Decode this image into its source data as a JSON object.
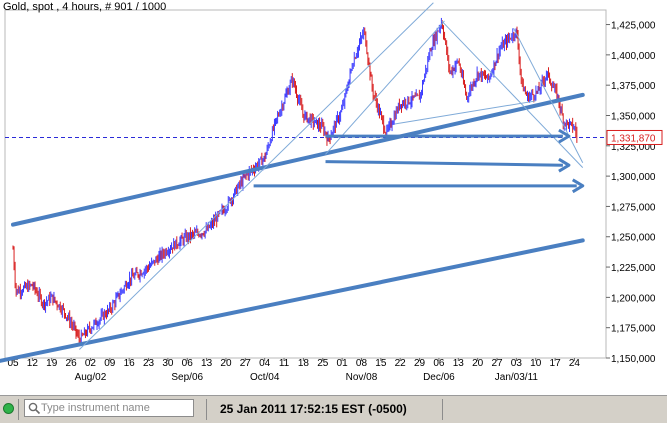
{
  "header": {
    "title": "Gold, spot , 4 hours, # 901 / 1000"
  },
  "status_bar": {
    "instrument_placeholder": "Type instrument name",
    "datetime": "25 Jan 2011 17:52:15  EST (-0500)"
  },
  "colors": {
    "bull": "#3a3aff",
    "bear": "#d81e1e",
    "trendline": "#4a7fc1",
    "thin_trendline": "#7faad8",
    "price_tag": "#d81e1e"
  },
  "chart_data": {
    "type": "candlestick",
    "title": "Gold, spot , 4 hours, # 901 / 1000",
    "ylim": [
      1150,
      1437
    ],
    "y_ticks": [
      1150,
      1175,
      1200,
      1225,
      1250,
      1275,
      1300,
      1325,
      1350,
      1375,
      1400,
      1425
    ],
    "y_tick_labels": [
      "1,150,000",
      "1,175,000",
      "1,200,000",
      "1,225,000",
      "1,250,000",
      "1,275,000",
      "1,300,000",
      "1,325,000",
      "1,350,000",
      "1,375,000",
      "1,400,000",
      "1,425,000"
    ],
    "last_price": 1331.87,
    "last_price_label": "1,331,870",
    "x_day_labels": [
      "05",
      "12",
      "19",
      "26",
      "02",
      "09",
      "16",
      "23",
      "30",
      "06",
      "13",
      "20",
      "27",
      "04",
      "11",
      "18",
      "25",
      "01",
      "08",
      "15",
      "22",
      "29",
      "06",
      "13",
      "20",
      "27",
      "03",
      "10",
      "17",
      "24"
    ],
    "x_month_labels": [
      "Aug/02",
      "Sep/06",
      "Oct/04",
      "Nov/08",
      "Dec/06",
      "Jan/03/11"
    ],
    "x_month_label_days": [
      "02",
      "06",
      "04",
      "08",
      "06",
      "03"
    ],
    "grid": false,
    "series": [
      {
        "role": "price",
        "points": [
          {
            "date": "Jul 05",
            "close": 1240
          },
          {
            "date": "Jul 06",
            "close": 1205
          },
          {
            "date": "Jul 12",
            "close": 1210
          },
          {
            "date": "Jul 16",
            "close": 1195
          },
          {
            "date": "Jul 19",
            "close": 1200
          },
          {
            "date": "Jul 23",
            "close": 1190
          },
          {
            "date": "Jul 27",
            "close": 1175
          },
          {
            "date": "Jul 29",
            "close": 1165
          },
          {
            "date": "Aug 02",
            "close": 1175
          },
          {
            "date": "Aug 09",
            "close": 1190
          },
          {
            "date": "Aug 16",
            "close": 1215
          },
          {
            "date": "Aug 23",
            "close": 1225
          },
          {
            "date": "Aug 30",
            "close": 1240
          },
          {
            "date": "Sep 06",
            "close": 1250
          },
          {
            "date": "Sep 13",
            "close": 1255
          },
          {
            "date": "Sep 20",
            "close": 1275
          },
          {
            "date": "Sep 27",
            "close": 1300
          },
          {
            "date": "Oct 04",
            "close": 1315
          },
          {
            "date": "Oct 08",
            "close": 1345
          },
          {
            "date": "Oct 14",
            "close": 1380
          },
          {
            "date": "Oct 18",
            "close": 1350
          },
          {
            "date": "Oct 25",
            "close": 1340
          },
          {
            "date": "Oct 27",
            "close": 1330
          },
          {
            "date": "Nov 01",
            "close": 1355
          },
          {
            "date": "Nov 05",
            "close": 1395
          },
          {
            "date": "Nov 09",
            "close": 1420
          },
          {
            "date": "Nov 12",
            "close": 1370
          },
          {
            "date": "Nov 17",
            "close": 1335
          },
          {
            "date": "Nov 22",
            "close": 1360
          },
          {
            "date": "Nov 29",
            "close": 1365
          },
          {
            "date": "Dec 03",
            "close": 1405
          },
          {
            "date": "Dec 07",
            "close": 1428
          },
          {
            "date": "Dec 10",
            "close": 1385
          },
          {
            "date": "Dec 13",
            "close": 1395
          },
          {
            "date": "Dec 16",
            "close": 1365
          },
          {
            "date": "Dec 20",
            "close": 1385
          },
          {
            "date": "Dec 24",
            "close": 1380
          },
          {
            "date": "Dec 28",
            "close": 1405
          },
          {
            "date": "Jan 03",
            "close": 1420
          },
          {
            "date": "Jan 05",
            "close": 1375
          },
          {
            "date": "Jan 07",
            "close": 1365
          },
          {
            "date": "Jan 11",
            "close": 1370
          },
          {
            "date": "Jan 14",
            "close": 1385
          },
          {
            "date": "Jan 18",
            "close": 1365
          },
          {
            "date": "Jan 20",
            "close": 1345
          },
          {
            "date": "Jan 24",
            "close": 1340
          },
          {
            "date": "Jan 25",
            "close": 1331.87
          }
        ]
      }
    ],
    "annotations": {
      "reference_line": {
        "style": "dashed",
        "y": 1331.87
      },
      "thick_trendlines": [
        {
          "from": {
            "date": "Jul 05",
            "y": 1260
          },
          "to": {
            "date": "Jan 27",
            "y": 1367
          }
        },
        {
          "from": {
            "date": "Jun 29",
            "y": 1147
          },
          "to": {
            "date": "Jan 27",
            "y": 1247
          }
        }
      ],
      "thin_trendlines": [
        {
          "from": {
            "date": "Jul 29",
            "y": 1157
          },
          "to": {
            "date": "Dec 04",
            "y": 1443
          }
        },
        {
          "from": {
            "date": "Oct 26",
            "y": 1318
          },
          "to": {
            "date": "Dec 08",
            "y": 1428
          }
        },
        {
          "from": {
            "date": "Nov 20",
            "y": 1343
          },
          "to": {
            "date": "Jan 10",
            "y": 1362
          }
        },
        {
          "from": {
            "date": "Dec 07",
            "y": 1428
          },
          "to": {
            "date": "Jan 27",
            "y": 1307
          }
        },
        {
          "from": {
            "date": "Jan 02",
            "y": 1422
          },
          "to": {
            "date": "Jan 27",
            "y": 1311
          }
        }
      ],
      "arrows": [
        {
          "from": {
            "date": "Oct 26",
            "y": 1333
          },
          "to": {
            "date": "Jan 22",
            "y": 1333
          }
        },
        {
          "from": {
            "date": "Oct 26",
            "y": 1312
          },
          "to": {
            "date": "Jan 22",
            "y": 1309
          }
        },
        {
          "from": {
            "date": "Sep 30",
            "y": 1292
          },
          "to": {
            "date": "Jan 27",
            "y": 1292
          }
        }
      ]
    }
  }
}
